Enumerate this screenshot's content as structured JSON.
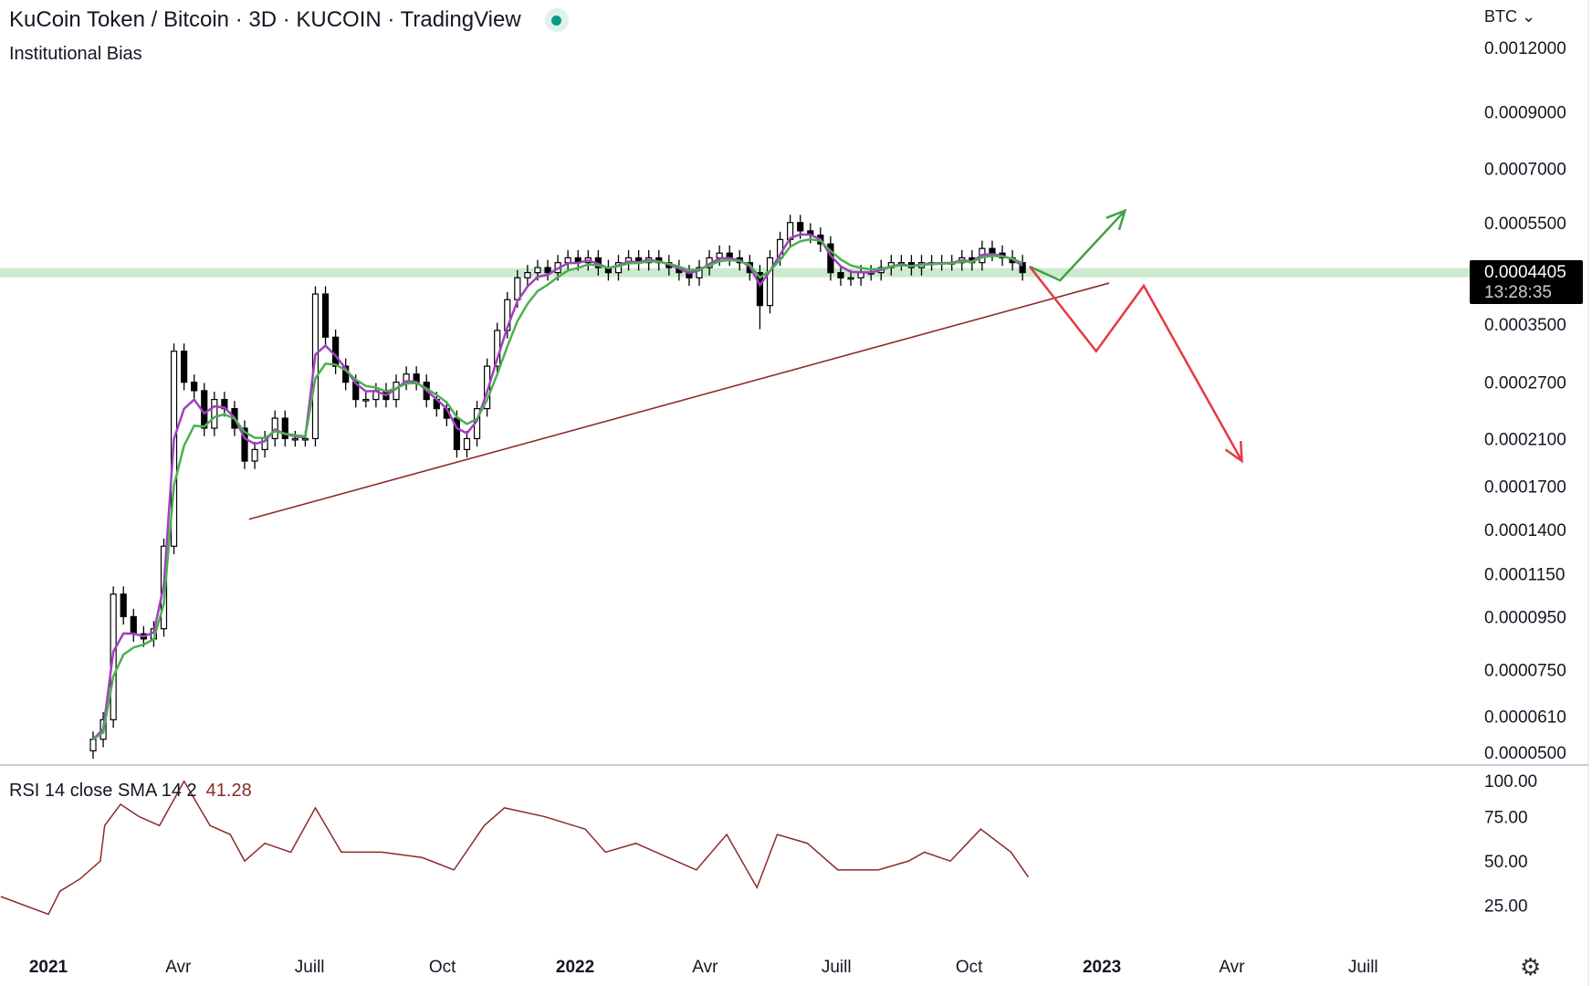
{
  "header": {
    "title": "KuCoin Token / Bitcoin · 3D · KUCOIN · TradingView",
    "indicator": "Institutional Bias",
    "live_status_color": "#089981"
  },
  "price_axis": {
    "currency": "BTC",
    "ticks": [
      "0.0012000",
      "0.0009000",
      "0.0007000",
      "0.0005500",
      "0.0003500",
      "0.0002700",
      "0.0002100",
      "0.0001700",
      "0.0001400",
      "0.0001150",
      "0.0000950",
      "0.0000750",
      "0.0000610",
      "0.0000500"
    ],
    "current_price": "0.0004405",
    "countdown": "13:28:35"
  },
  "rsi": {
    "label": "RSI 14 close SMA 14 2",
    "value": "41.28",
    "ticks": [
      "100.00",
      "75.00",
      "50.00",
      "25.00"
    ],
    "color": "#8b2a2a"
  },
  "time_axis": {
    "labels": [
      {
        "text": "2021",
        "date": "2021-01-01",
        "bold": true
      },
      {
        "text": "Avr",
        "date": "2021-04-01"
      },
      {
        "text": "Juill",
        "date": "2021-07-01"
      },
      {
        "text": "Oct",
        "date": "2021-10-01"
      },
      {
        "text": "2022",
        "date": "2022-01-01",
        "bold": true
      },
      {
        "text": "Avr",
        "date": "2022-04-01"
      },
      {
        "text": "Juill",
        "date": "2022-07-01"
      },
      {
        "text": "Oct",
        "date": "2022-10-01"
      },
      {
        "text": "2023",
        "date": "2023-01-01",
        "bold": true
      },
      {
        "text": "Avr",
        "date": "2023-04-01"
      },
      {
        "text": "Juill",
        "date": "2023-07-01"
      }
    ]
  },
  "chart_data": {
    "type": "candlestick",
    "scale": "log",
    "ylim": [
      5e-05,
      0.0012
    ],
    "start_date": "2021-02-01",
    "step_days": 7,
    "closes": [
      5.5e-05,
      6e-05,
      0.000105,
      9.5e-05,
      8.8e-05,
      8.6e-05,
      9e-05,
      0.00013,
      0.00031,
      0.00027,
      0.00026,
      0.00022,
      0.00025,
      0.00024,
      0.00022,
      0.00019,
      0.0002,
      0.00021,
      0.00023,
      0.00021,
      0.00021,
      0.00021,
      0.0004,
      0.00033,
      0.00029,
      0.00027,
      0.00025,
      0.00025,
      0.00026,
      0.00025,
      0.00027,
      0.00028,
      0.00027,
      0.00025,
      0.00024,
      0.00023,
      0.0002,
      0.00021,
      0.00024,
      0.00029,
      0.00034,
      0.00039,
      0.00043,
      0.00044,
      0.00045,
      0.00044,
      0.00046,
      0.00047,
      0.00046,
      0.00047,
      0.00045,
      0.00044,
      0.00046,
      0.00047,
      0.00046,
      0.00047,
      0.00046,
      0.00045,
      0.00044,
      0.00043,
      0.00045,
      0.00047,
      0.00048,
      0.00047,
      0.00046,
      0.00044,
      0.00038,
      0.00047,
      0.00051,
      0.00055,
      0.00053,
      0.00052,
      0.0005,
      0.00044,
      0.00043,
      0.00043,
      0.00044,
      0.00044,
      0.00045,
      0.00046,
      0.00046,
      0.00045,
      0.00046,
      0.00046,
      0.00046,
      0.00046,
      0.00047,
      0.00046,
      0.00049,
      0.00048,
      0.00047,
      0.00046,
      0.00044
    ],
    "rsi_series": [
      [
        "2020-11-29",
        30
      ],
      [
        "2021-01-01",
        20
      ],
      [
        "2021-01-09",
        33
      ],
      [
        "2021-01-23",
        40
      ],
      [
        "2021-02-06",
        50
      ],
      [
        "2021-02-09",
        70
      ],
      [
        "2021-02-20",
        82
      ],
      [
        "2021-03-05",
        75
      ],
      [
        "2021-03-19",
        70
      ],
      [
        "2021-04-05",
        95
      ],
      [
        "2021-04-23",
        70
      ],
      [
        "2021-05-07",
        65
      ],
      [
        "2021-05-17",
        50
      ],
      [
        "2021-05-31",
        60
      ],
      [
        "2021-06-18",
        55
      ],
      [
        "2021-07-05",
        80
      ],
      [
        "2021-07-23",
        55
      ],
      [
        "2021-08-20",
        55
      ],
      [
        "2021-09-17",
        52
      ],
      [
        "2021-10-09",
        45
      ],
      [
        "2021-10-30",
        70
      ],
      [
        "2021-11-13",
        80
      ],
      [
        "2021-12-11",
        75
      ],
      [
        "2022-01-08",
        68
      ],
      [
        "2022-01-22",
        55
      ],
      [
        "2022-02-12",
        60
      ],
      [
        "2022-03-12",
        50
      ],
      [
        "2022-03-26",
        45
      ],
      [
        "2022-04-16",
        65
      ],
      [
        "2022-05-07",
        35
      ],
      [
        "2022-05-21",
        65
      ],
      [
        "2022-06-11",
        60
      ],
      [
        "2022-07-02",
        45
      ],
      [
        "2022-07-30",
        45
      ],
      [
        "2022-08-20",
        50
      ],
      [
        "2022-08-31",
        55
      ],
      [
        "2022-09-18",
        50
      ],
      [
        "2022-10-09",
        68
      ],
      [
        "2022-10-30",
        55
      ],
      [
        "2022-11-11",
        41
      ]
    ],
    "annotations": {
      "support_level": 0.00044,
      "trendline": [
        [
          "2021-05-20",
          0.0001466
        ],
        [
          "2023-01-06",
          0.00042
        ]
      ],
      "bullish_path": [
        [
          "2022-11-12",
          0.000452
        ],
        [
          "2022-12-03",
          0.000425
        ],
        [
          "2023-01-17",
          0.00058
        ]
      ],
      "bearish_path": [
        [
          "2022-11-12",
          0.000452
        ],
        [
          "2022-12-28",
          0.00031
        ],
        [
          "2023-01-30",
          0.000415
        ],
        [
          "2023-04-08",
          0.00019
        ]
      ],
      "colors": {
        "support": "#cdeacf",
        "trendline": "#8b2a2a",
        "bullish": "#43a047",
        "bearish": "#e53945",
        "ema_fast": "#a040c0",
        "ema_slow": "#4caf50"
      }
    }
  }
}
